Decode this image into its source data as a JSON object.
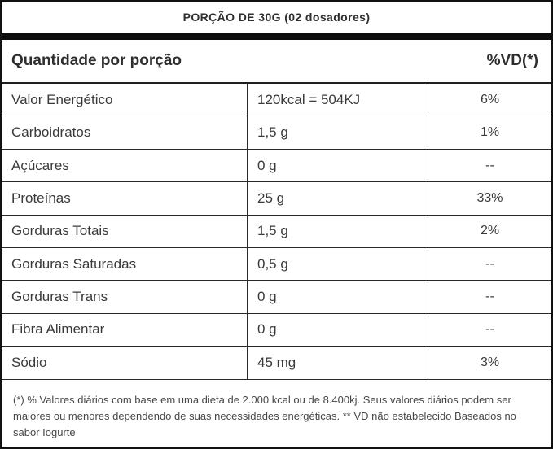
{
  "title": "PORÇÃO DE 30G (02 dosadores)",
  "header": {
    "left": "Quantidade por porção",
    "right": "%VD(*)"
  },
  "rows": [
    {
      "label": "Valor Energético",
      "amount": "120kcal = 504KJ",
      "vd": "6%"
    },
    {
      "label": "Carboidratos",
      "amount": "1,5 g",
      "vd": "1%"
    },
    {
      "label": "Açúcares",
      "amount": "0 g",
      "vd": "--"
    },
    {
      "label": "Proteínas",
      "amount": "25 g",
      "vd": "33%"
    },
    {
      "label": "Gorduras Totais",
      "amount": "1,5 g",
      "vd": "2%"
    },
    {
      "label": "Gorduras Saturadas",
      "amount": "0,5 g",
      "vd": "--"
    },
    {
      "label": "Gorduras Trans",
      "amount": "0 g",
      "vd": "--"
    },
    {
      "label": "Fibra Alimentar",
      "amount": "0 g",
      "vd": "--"
    },
    {
      "label": "Sódio",
      "amount": "45 mg",
      "vd": "3%"
    }
  ],
  "footnote": "(*) % Valores diários com base em uma dieta de 2.000 kcal ou de 8.400kj. Seus valores diários podem ser maiores ou menores dependendo de suas necessidades energéticas. ** VD não estabelecido Baseados no sabor Iogurte",
  "colors": {
    "border": "#111111",
    "bar": "#0d0d0d",
    "text": "#3a3a3a",
    "background": "#ffffff"
  }
}
